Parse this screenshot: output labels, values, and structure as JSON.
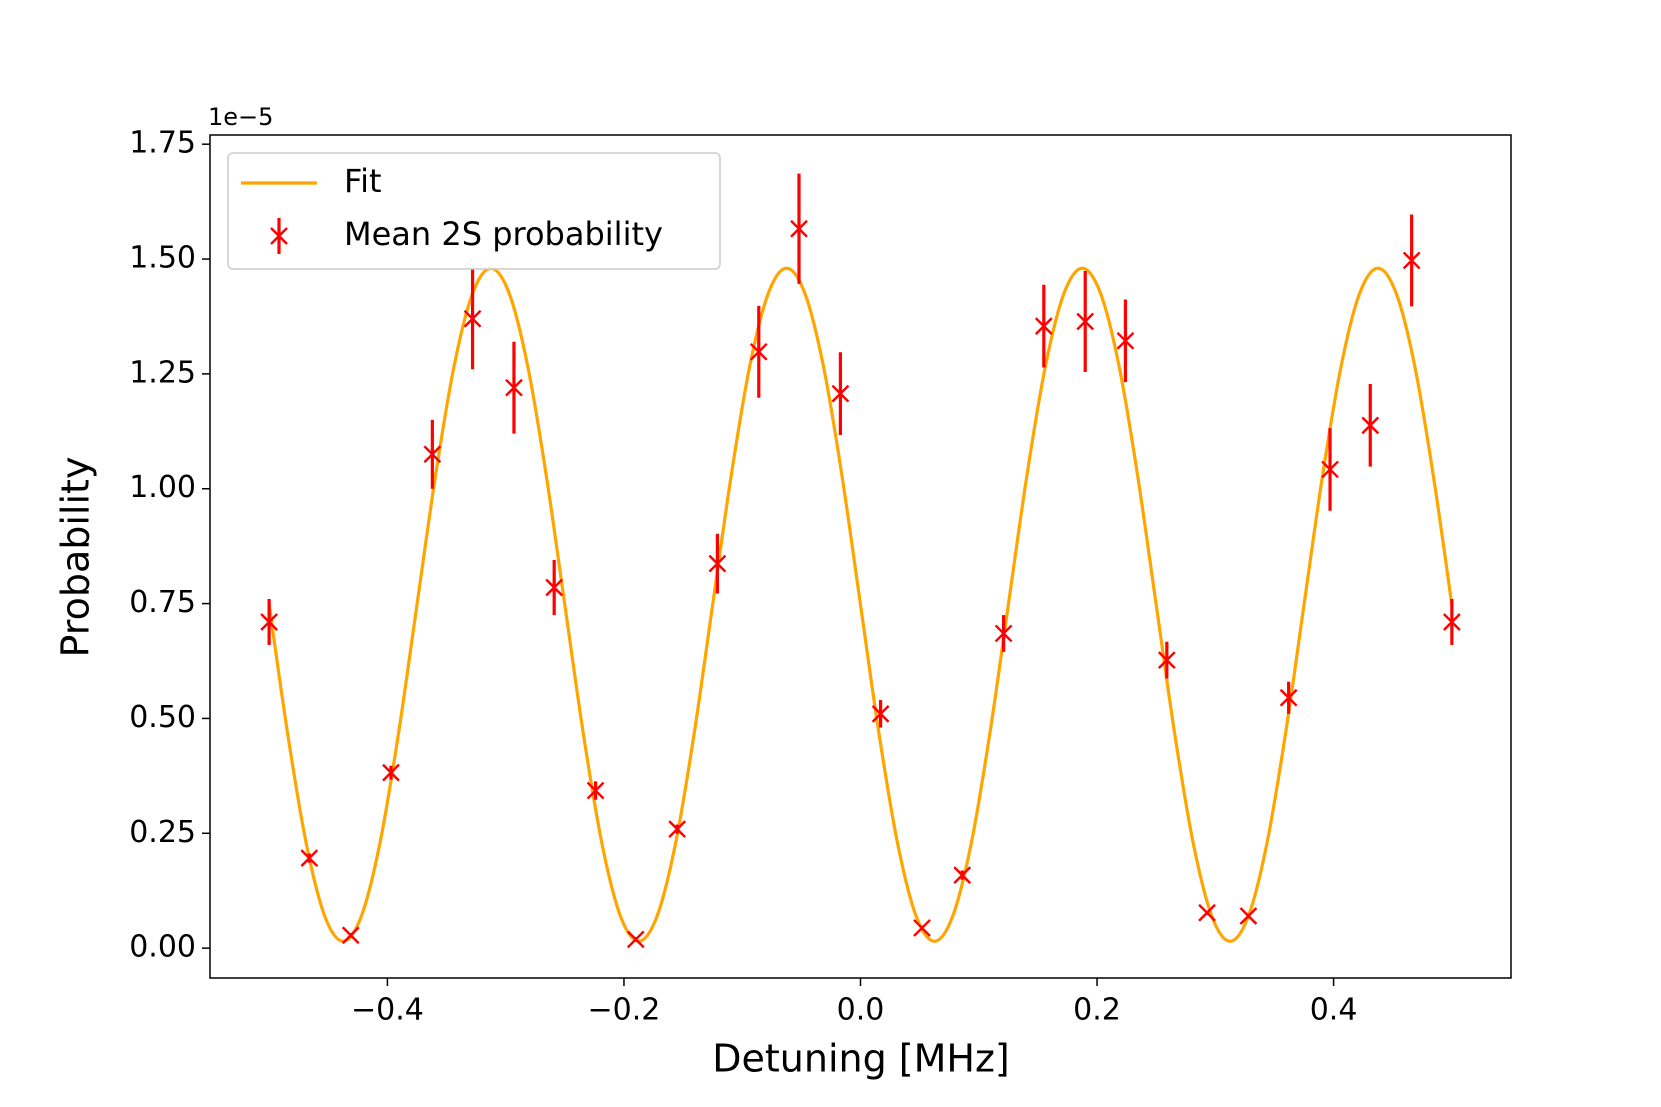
{
  "chart_data": {
    "type": "errorbar",
    "x_label": "Detuning [MHz]",
    "y_label": "Probability",
    "y_offset_label": "1e−5",
    "xlim": [
      -0.55,
      0.55
    ],
    "ylim": [
      -0.065,
      1.77
    ],
    "xticks": [
      {
        "value": -0.4,
        "label": "−0.4"
      },
      {
        "value": -0.2,
        "label": "−0.2"
      },
      {
        "value": 0,
        "label": "0.0"
      },
      0.2,
      0.4
    ],
    "yticks": [
      {
        "value": 0,
        "label": "0.00"
      },
      0.25,
      {
        "value": 0.5,
        "label": "0.50"
      },
      0.75,
      {
        "value": 1,
        "label": "1.00"
      },
      1.25,
      {
        "value": 1.5,
        "label": "1.50"
      },
      1.75
    ],
    "legend": "upper left",
    "series": [
      {
        "name": "Fit",
        "type": "line",
        "color": "#ffa500",
        "x": [
          -0.5,
          -0.484375,
          -0.46875,
          -0.453125,
          -0.4375,
          -0.421875,
          -0.40625,
          -0.390625,
          -0.375,
          -0.359375,
          -0.34375,
          -0.328125,
          -0.3125,
          -0.296875,
          -0.28125,
          -0.265625,
          -0.25,
          -0.234375,
          -0.21875,
          -0.203125,
          -0.1875,
          -0.171875,
          -0.15625,
          -0.140625,
          -0.125,
          -0.109375,
          -0.09375,
          -0.078125,
          -0.0625,
          -0.046875,
          -0.03125,
          -0.015625,
          0,
          0.015625,
          0.03125,
          0.046875,
          0.0625,
          0.078125,
          0.09375,
          0.109375,
          0.125,
          0.140625,
          0.15625,
          0.171875,
          0.1875,
          0.203125,
          0.21875,
          0.234375,
          0.25,
          0.265625,
          0.28125,
          0.296875,
          0.3125,
          0.328125,
          0.34375,
          0.359375,
          0.375,
          0.390625,
          0.40625,
          0.421875,
          0.4375,
          0.453125,
          0.46875,
          0.484375,
          0.5
        ],
        "values": [
          0.7475,
          0.4672,
          0.2295,
          0.0707,
          0.015,
          0.0707,
          0.2295,
          0.4672,
          0.7475,
          1.0278,
          1.2655,
          1.4243,
          1.48,
          1.4243,
          1.2655,
          1.0278,
          0.7475,
          0.4672,
          0.2295,
          0.0707,
          0.015,
          0.0707,
          0.2295,
          0.4672,
          0.7475,
          1.0278,
          1.2655,
          1.4243,
          1.48,
          1.4243,
          1.2655,
          1.0278,
          0.7475,
          0.4672,
          0.2295,
          0.0707,
          0.015,
          0.0707,
          0.2295,
          0.4672,
          0.7475,
          1.0278,
          1.2655,
          1.4243,
          1.48,
          1.4243,
          1.2655,
          1.0278,
          0.7475,
          0.4672,
          0.2295,
          0.0707,
          0.015,
          0.0707,
          0.2295,
          0.4672,
          0.7475,
          1.0278,
          1.2655,
          1.4243,
          1.48,
          1.4243,
          1.2655,
          1.0278,
          0.7475
        ]
      },
      {
        "name": "Mean 2S probability",
        "type": "errorbar",
        "color": "#ff0000",
        "x": [
          -0.5,
          -0.466,
          -0.431,
          -0.397,
          -0.362,
          -0.328,
          -0.293,
          -0.259,
          -0.224,
          -0.19,
          -0.155,
          -0.121,
          -0.086,
          -0.052,
          -0.017,
          0.017,
          0.052,
          0.086,
          0.121,
          0.155,
          0.19,
          0.224,
          0.259,
          0.293,
          0.328,
          0.362,
          0.397,
          0.431,
          0.466,
          0.5
        ],
        "values": [
          0.71,
          0.196,
          0.028,
          0.382,
          1.075,
          1.37,
          1.22,
          0.785,
          0.343,
          0.019,
          0.259,
          0.837,
          1.298,
          1.566,
          1.207,
          0.51,
          0.044,
          0.159,
          0.685,
          1.354,
          1.364,
          1.322,
          0.627,
          0.077,
          0.07,
          0.545,
          1.042,
          1.138,
          1.497,
          0.71
        ],
        "errors": [
          0.05,
          0.01,
          0.005,
          0.015,
          0.075,
          0.11,
          0.1,
          0.06,
          0.02,
          0.005,
          0.01,
          0.065,
          0.1,
          0.12,
          0.09,
          0.03,
          0.005,
          0.01,
          0.04,
          0.09,
          0.11,
          0.09,
          0.04,
          0.005,
          0.005,
          0.035,
          0.09,
          0.09,
          0.1,
          0.05
        ]
      }
    ]
  }
}
